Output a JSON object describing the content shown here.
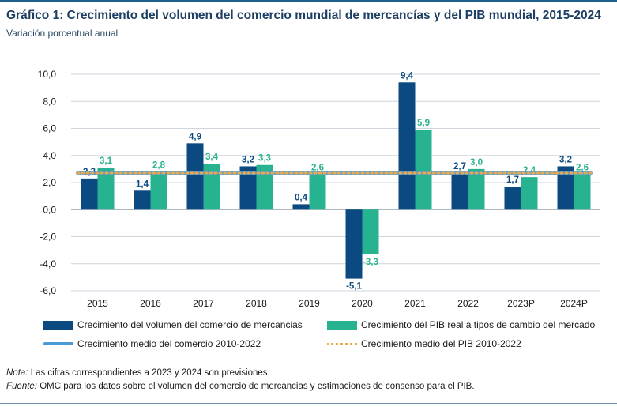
{
  "title": "Gráfico 1: Crecimiento del volumen del comercio mundial de mercancías y del PIB mundial, 2015-2024",
  "subtitle": "Variación porcentual anual",
  "colors": {
    "trade": "#0b4a80",
    "gdp": "#27b38f",
    "trade_avg": "#4a9ad6",
    "gdp_avg": "#e8a94e",
    "grid": "#cfd6de",
    "axis_text": "#1a1a1a"
  },
  "chart_data": {
    "type": "bar",
    "categories": [
      "2015",
      "2016",
      "2017",
      "2018",
      "2019",
      "2020",
      "2021",
      "2022",
      "2023P",
      "2024P"
    ],
    "series": [
      {
        "name": "Crecimiento del volumen del comercio de mercancias",
        "values": [
          2.3,
          1.4,
          4.9,
          3.2,
          0.4,
          -5.1,
          9.4,
          2.7,
          1.7,
          3.2
        ],
        "labels": [
          "2,3",
          "1,4",
          "4,9",
          "3,2",
          "0,4",
          "-5,1",
          "9,4",
          "2,7",
          "1,7",
          "3,2"
        ]
      },
      {
        "name": "Crecimiento del PIB real a tipos de cambio del mercado",
        "values": [
          3.1,
          2.8,
          3.4,
          3.3,
          2.6,
          -3.3,
          5.9,
          3.0,
          2.4,
          2.6
        ],
        "labels": [
          "3,1",
          "2,8",
          "3,4",
          "3,3",
          "2,6",
          "-3,3",
          "5,9",
          "3,0",
          "2,4",
          "2,6"
        ]
      }
    ],
    "reference_lines": [
      {
        "name": "Crecimiento medio del comercio 2010-2022",
        "value": 2.7,
        "style": "solid"
      },
      {
        "name": "Crecimiento medio del PIB 2010-2022",
        "value": 2.7,
        "style": "dotted"
      }
    ],
    "ylim": [
      -6.0,
      10.0
    ],
    "yticks": [
      10.0,
      8.0,
      6.0,
      4.0,
      2.0,
      0.0,
      -2.0,
      -4.0,
      -6.0
    ],
    "ytick_labels": [
      "10,0",
      "8,0",
      "6,0",
      "4,0",
      "2,0",
      "0,0",
      "-2,0",
      "-4,0",
      "-6,0"
    ],
    "grid": true,
    "legend_position": "bottom"
  },
  "legend": {
    "trade_bar": "Crecimiento del volumen del comercio de mercancias",
    "gdp_bar": "Crecimiento del PIB real a tipos de cambio del mercado",
    "trade_avg": "Crecimiento medio del comercio 2010-2022",
    "gdp_avg": "Crecimiento medio del PIB 2010-2022"
  },
  "notes": {
    "note_label": "Nota:",
    "note_text": " Las cifras correspondientes a 2023 y 2024 son previsiones.",
    "source_label": "Fuente:",
    "source_text": " OMC para los datos sobre el volumen del comercio de mercancias y estimaciones de consenso para el PIB."
  }
}
